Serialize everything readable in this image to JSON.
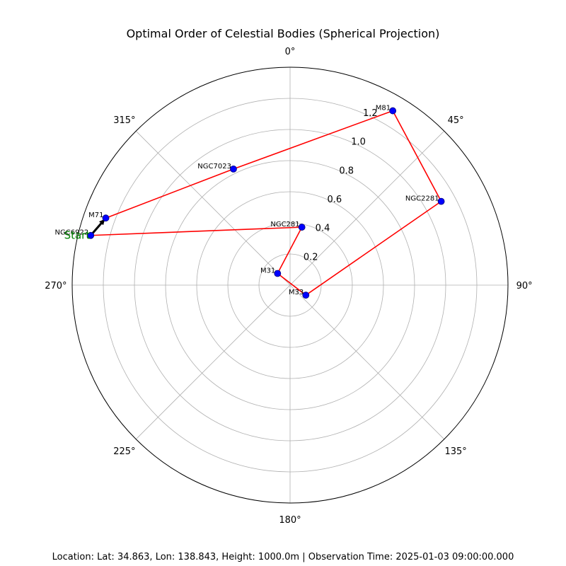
{
  "chart_data": {
    "type": "polar-scatter-path",
    "title": "Optimal Order of Celestial Bodies (Spherical Projection)",
    "theta_direction": "clockwise",
    "theta_zero": "top",
    "rlim": [
      0,
      1.4
    ],
    "rticks": [
      "0.2",
      "0.4",
      "0.6",
      "0.8",
      "1.0",
      "1.2"
    ],
    "rtick_values": [
      0.2,
      0.4,
      0.6,
      0.8,
      1.0,
      1.2
    ],
    "theta_ticks": [
      "0°",
      "45°",
      "90°",
      "135°",
      "180°",
      "225°",
      "270°",
      "315°"
    ],
    "theta_tick_values": [
      0,
      45,
      90,
      135,
      180,
      225,
      270,
      315
    ],
    "grid": true,
    "point_color": "#0000ff",
    "path_color": "#ff0000",
    "start_arrow_color": "#000000",
    "start_label_color": "#008000",
    "start_label": "Start",
    "points": [
      {
        "name": "NGC6922",
        "theta": 284,
        "r": 1.32
      },
      {
        "name": "M71",
        "theta": 290,
        "r": 1.26
      },
      {
        "name": "NGC7023",
        "theta": 334,
        "r": 0.83
      },
      {
        "name": "M81",
        "theta": 30.5,
        "r": 1.3
      },
      {
        "name": "NGC2281",
        "theta": 61,
        "r": 1.11
      },
      {
        "name": "M33",
        "theta": 122.5,
        "r": 0.12
      },
      {
        "name": "M31",
        "theta": 313,
        "r": 0.11
      },
      {
        "name": "NGC281",
        "theta": 11.5,
        "r": 0.38
      }
    ],
    "order": [
      "NGC6922",
      "M71",
      "NGC7023",
      "M81",
      "NGC2281",
      "M33",
      "M31",
      "NGC281",
      "NGC6922"
    ]
  },
  "footer": "Location: Lat: 34.863, Lon: 138.843, Height: 1000.0m | Observation Time: 2025-01-03 09:00:00.000"
}
